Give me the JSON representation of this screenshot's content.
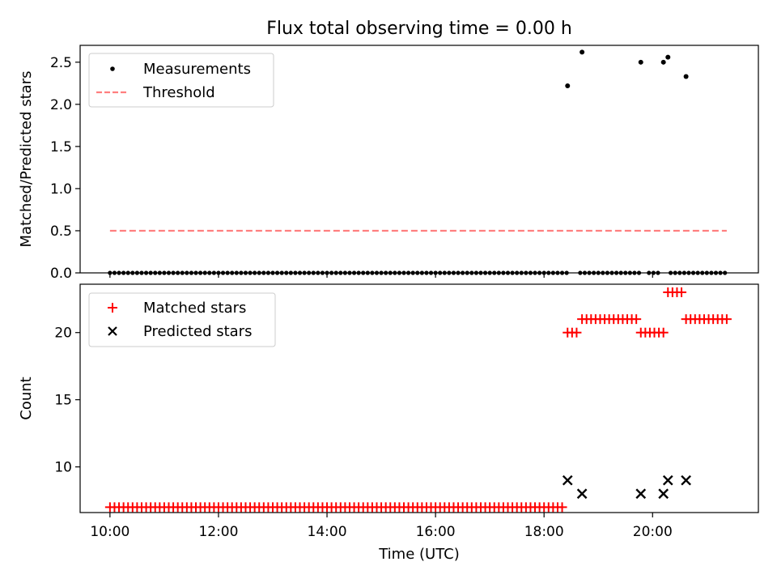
{
  "figure": {
    "title": "Flux total observing time = 0.00 h"
  },
  "chart_data": [
    {
      "type": "scatter",
      "title": "Flux total observing time = 0.00 h",
      "ylabel": "Matched/Predicted stars",
      "xlabel": "",
      "xlim": [
        "09:27",
        "21:57"
      ],
      "ylim": [
        0,
        2.7
      ],
      "yticks": [
        0.0,
        0.5,
        1.0,
        1.5,
        2.0,
        2.5
      ],
      "ytick_labels": [
        "0.0",
        "0.5",
        "1.0",
        "1.5",
        "2.0",
        "2.5"
      ],
      "xticks": [
        "10:00",
        "12:00",
        "14:00",
        "16:00",
        "18:00",
        "20:00"
      ],
      "grid": false,
      "legend": {
        "placement": "upper-left",
        "entries": [
          {
            "label": "Measurements",
            "marker": "dot",
            "color": "#000000"
          },
          {
            "label": "Threshold",
            "marker": "dashed-line",
            "color": "#ff7f7f"
          }
        ]
      },
      "series": [
        {
          "name": "Measurements",
          "marker": "dot",
          "color": "#000000",
          "zero_runs": [
            [
              "10:00",
              "18:26"
            ],
            [
              "18:40",
              "19:47"
            ],
            [
              "19:56",
              "20:10"
            ],
            [
              "20:20",
              "21:22"
            ]
          ],
          "points": [
            {
              "x": "18:26",
              "y": 2.22
            },
            {
              "x": "18:42",
              "y": 2.62
            },
            {
              "x": "19:47",
              "y": 2.5
            },
            {
              "x": "20:12",
              "y": 2.5
            },
            {
              "x": "20:17",
              "y": 2.56
            },
            {
              "x": "20:37",
              "y": 2.33
            }
          ]
        },
        {
          "name": "Threshold",
          "style": "dashed",
          "color": "#ff7f7f",
          "x": [
            "10:00",
            "21:22"
          ],
          "y": [
            0.5,
            0.5
          ]
        }
      ]
    },
    {
      "type": "scatter",
      "title": "",
      "ylabel": "Count",
      "xlabel": "Time (UTC)",
      "xlim": [
        "09:27",
        "21:57"
      ],
      "ylim": [
        6.6,
        23.6
      ],
      "yticks": [
        10,
        15,
        20
      ],
      "ytick_labels": [
        "10",
        "15",
        "20"
      ],
      "xticks": [
        "10:00",
        "12:00",
        "14:00",
        "16:00",
        "18:00",
        "20:00"
      ],
      "grid": false,
      "legend": {
        "placement": "upper-left",
        "entries": [
          {
            "label": "Matched stars",
            "marker": "plus",
            "color": "#ff0000"
          },
          {
            "label": "Predicted stars",
            "marker": "x",
            "color": "#000000"
          }
        ]
      },
      "series": [
        {
          "name": "Matched stars",
          "marker": "plus",
          "color": "#ff0000",
          "runs": [
            {
              "from": "10:00",
              "to": "18:20",
              "y": 7
            },
            {
              "from": "18:26",
              "to": "18:36",
              "y": 20
            },
            {
              "from": "18:42",
              "to": "19:42",
              "y": 21
            },
            {
              "from": "19:47",
              "to": "20:12",
              "y": 20
            },
            {
              "from": "20:17",
              "to": "20:32",
              "y": 23
            },
            {
              "from": "20:37",
              "to": "21:22",
              "y": 21
            }
          ]
        },
        {
          "name": "Predicted stars",
          "marker": "x",
          "color": "#000000",
          "points": [
            {
              "x": "18:26",
              "y": 9
            },
            {
              "x": "18:42",
              "y": 8
            },
            {
              "x": "19:47",
              "y": 8
            },
            {
              "x": "20:12",
              "y": 8
            },
            {
              "x": "20:17",
              "y": 9
            },
            {
              "x": "20:37",
              "y": 9
            }
          ]
        }
      ]
    }
  ]
}
